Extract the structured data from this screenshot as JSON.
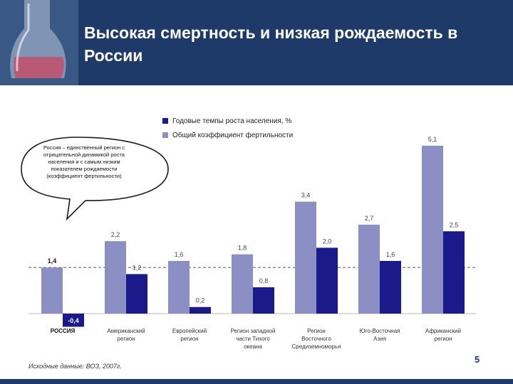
{
  "slide": {
    "title": "Высокая смертность и низкая рождаемость в России",
    "callout": "Россия – единственный регион с отрицательной динамикой роста населения и с самым низким показателем рождаемости (коэффициент фертильности)",
    "source": "Исходные данные: ВОЗ, 2007г.",
    "page_number": "5"
  },
  "colors": {
    "header": "#1e3a68",
    "fertility": "#8c8fc4",
    "growth": "#1a1a8a"
  },
  "chart_data": {
    "type": "bar",
    "categories": [
      "РОССИЯ",
      "Американский регион",
      "Европейский регион",
      "Регион западной части Тихого океана",
      "Регион Восточного Средиземноморья",
      "Юго-Восточная Азия",
      "Африканский регион"
    ],
    "series": [
      {
        "name": "Общий коэффициент фертильности",
        "values": [
          1.4,
          2.2,
          1.6,
          1.8,
          3.4,
          2.7,
          5.1
        ],
        "labels": [
          "1,4",
          "2,2",
          "1,6",
          "1,8",
          "3,4",
          "2,7",
          "5,1"
        ]
      },
      {
        "name": "Годовые темпы роста населения, %",
        "values": [
          -0.4,
          1.2,
          0.2,
          0.8,
          2.0,
          1.6,
          2.5
        ],
        "labels": [
          "-0,4",
          "1,2",
          "0,2",
          "0,8",
          "2,0",
          "1,6",
          "2,5"
        ]
      }
    ],
    "reference_line": 1.4,
    "legend_position": "top"
  }
}
